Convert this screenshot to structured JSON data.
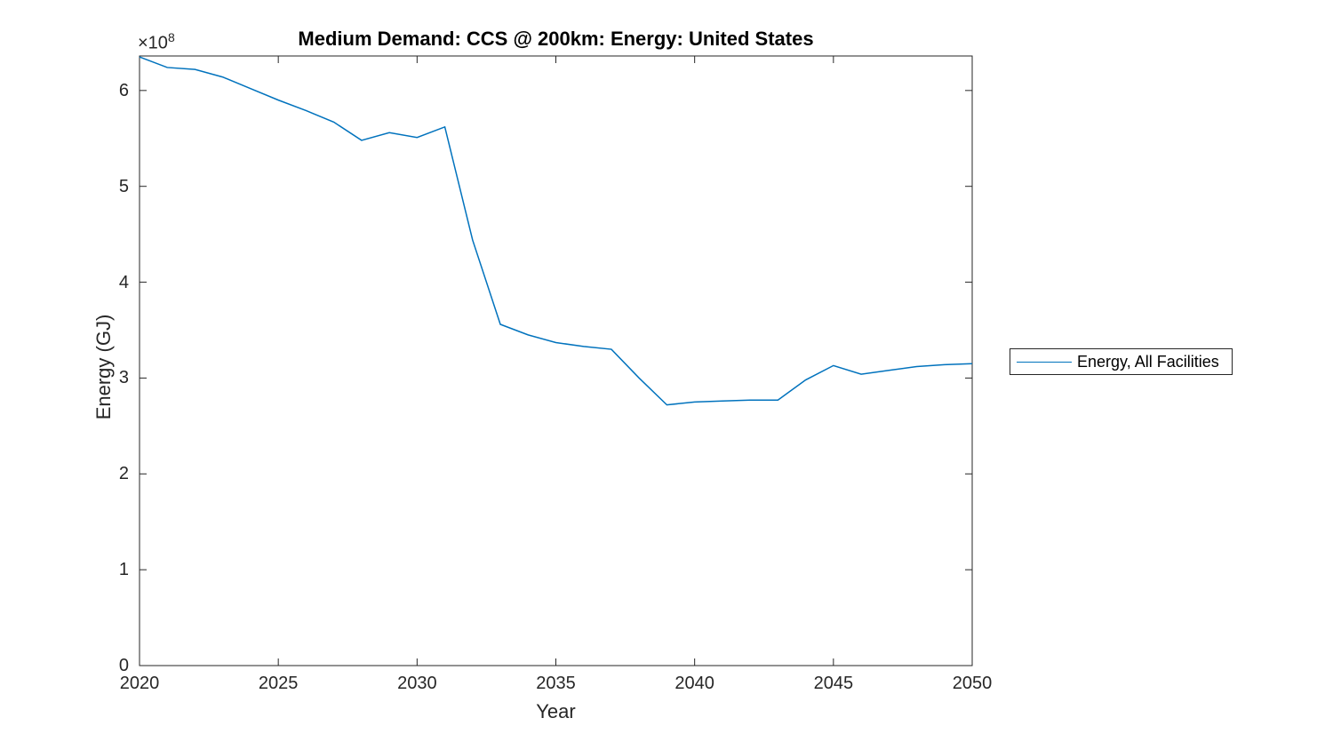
{
  "figure": {
    "background": "#ffffff"
  },
  "chart_data": {
    "type": "line",
    "title": "Medium Demand: CCS @ 200km: Energy: United States",
    "xlabel": "Year",
    "ylabel": "Energy (GJ)",
    "y_axis_exponent": {
      "base": "×10",
      "sup": "8"
    },
    "xlim": [
      2020,
      2050
    ],
    "ylim": [
      0,
      636000000
    ],
    "xticks": [
      2020,
      2025,
      2030,
      2035,
      2040,
      2045,
      2050
    ],
    "yticks": [
      0,
      100000000,
      200000000,
      300000000,
      400000000,
      500000000,
      600000000
    ],
    "ytick_labels": [
      "0",
      "1",
      "2",
      "3",
      "4",
      "5",
      "6"
    ],
    "grid": false,
    "box": true,
    "axis_color": "#262626",
    "legend": {
      "position": "outside-right",
      "border_color": "#262626",
      "entries": [
        {
          "label": "Energy, All Facilities",
          "color": "#0072BD"
        }
      ]
    },
    "series": [
      {
        "name": "Energy, All Facilities",
        "color": "#0072BD",
        "x": [
          2020,
          2021,
          2022,
          2023,
          2024,
          2025,
          2026,
          2027,
          2028,
          2029,
          2030,
          2031,
          2032,
          2033,
          2034,
          2035,
          2036,
          2037,
          2038,
          2039,
          2040,
          2041,
          2042,
          2043,
          2044,
          2045,
          2046,
          2047,
          2048,
          2049,
          2050
        ],
        "values": [
          635000000,
          624000000,
          622000000,
          614000000,
          602000000,
          590000000,
          579000000,
          567000000,
          548000000,
          556000000,
          551000000,
          562000000,
          444000000,
          356000000,
          345000000,
          337000000,
          333000000,
          330000000,
          300000000,
          272000000,
          275000000,
          276000000,
          277000000,
          277000000,
          298000000,
          313000000,
          304000000,
          308000000,
          312000000,
          314000000,
          315000000
        ]
      }
    ]
  }
}
